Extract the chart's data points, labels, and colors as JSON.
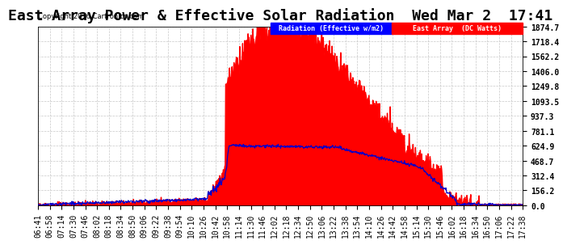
{
  "title": "East Array Power & Effective Solar Radiation  Wed Mar 2  17:41",
  "copyright": "Copyright 2016 Cartronics.com",
  "legend_radiation": "Radiation (Effective w/m2)",
  "legend_east": "East Array  (DC Watts)",
  "y_max": 1874.7,
  "y_ticks": [
    0.0,
    156.2,
    312.4,
    468.7,
    624.9,
    781.1,
    937.3,
    1093.5,
    1249.8,
    1406.0,
    1562.2,
    1718.4,
    1874.7
  ],
  "background_color": "#ffffff",
  "grid_color": "#c8c8c8",
  "radiation_color": "#ff0000",
  "east_array_color": "#0000cc",
  "title_fontsize": 13,
  "tick_fontsize": 7,
  "radiation_legend_color": "#0000ff",
  "east_legend_color": "#ff0000",
  "x_tick_labels": [
    "06:41",
    "06:58",
    "07:14",
    "07:30",
    "07:46",
    "08:02",
    "08:18",
    "08:34",
    "08:50",
    "09:06",
    "09:22",
    "09:38",
    "09:54",
    "10:10",
    "10:26",
    "10:42",
    "10:58",
    "11:14",
    "11:30",
    "11:46",
    "12:02",
    "12:18",
    "12:34",
    "12:50",
    "13:06",
    "13:22",
    "13:38",
    "13:54",
    "14:10",
    "14:26",
    "14:42",
    "14:58",
    "15:14",
    "15:30",
    "15:46",
    "16:02",
    "16:18",
    "16:34",
    "16:50",
    "17:06",
    "17:22",
    "17:38"
  ]
}
